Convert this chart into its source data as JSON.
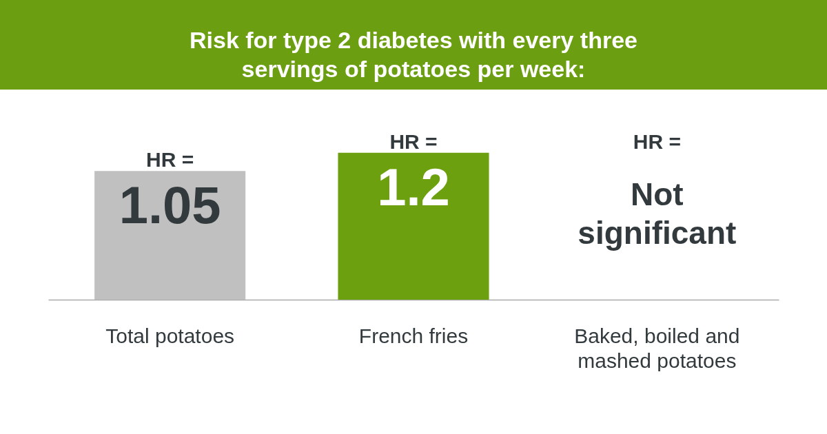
{
  "chart_data": {
    "type": "bar",
    "title": "Risk for type 2 diabetes with every three servings of potatoes per week:",
    "categories": [
      "Total potatoes",
      "French fries",
      "Baked, boiled and mashed potatoes"
    ],
    "values": [
      1.05,
      1.2,
      null
    ],
    "colors": [
      "#c0c0c0",
      "#6ca00f",
      null
    ],
    "value_labels": [
      "1.05",
      "1.2",
      "Not significant"
    ],
    "annotations": [
      {
        "text": "HR =",
        "x": "Total potatoes",
        "y": 1.05
      },
      {
        "text": "HR =",
        "x": "French fries",
        "y": 1.2
      },
      "HR ="
    ]
  }
}
